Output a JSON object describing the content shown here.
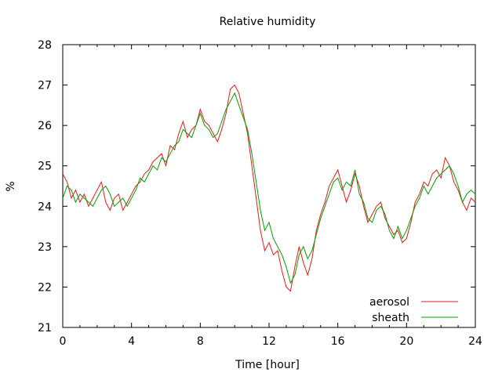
{
  "chart_data": {
    "type": "line",
    "title": "Relative humidity",
    "xlabel": "Time [hour]",
    "ylabel": "%",
    "xlim": [
      0,
      24
    ],
    "ylim": [
      21,
      28
    ],
    "xticks": [
      0,
      4,
      8,
      12,
      16,
      20,
      24
    ],
    "yticks": [
      21,
      22,
      23,
      24,
      25,
      26,
      27,
      28
    ],
    "grid": false,
    "legend_position": "bottom-right",
    "series": [
      {
        "name": "aerosol",
        "color": "#e41a1c",
        "x": [
          0,
          0.25,
          0.5,
          0.75,
          1,
          1.25,
          1.5,
          1.75,
          2,
          2.25,
          2.5,
          2.75,
          3,
          3.25,
          3.5,
          3.75,
          4,
          4.25,
          4.5,
          4.75,
          5,
          5.25,
          5.5,
          5.75,
          6,
          6.25,
          6.5,
          6.75,
          7,
          7.25,
          7.5,
          7.75,
          8,
          8.25,
          8.5,
          8.75,
          9,
          9.25,
          9.5,
          9.75,
          10,
          10.25,
          10.5,
          10.75,
          11,
          11.25,
          11.5,
          11.75,
          12,
          12.25,
          12.5,
          12.75,
          13,
          13.25,
          13.5,
          13.75,
          14,
          14.25,
          14.5,
          14.75,
          15,
          15.25,
          15.5,
          15.75,
          16,
          16.25,
          16.5,
          16.75,
          17,
          17.25,
          17.5,
          17.75,
          18,
          18.25,
          18.5,
          18.75,
          19,
          19.25,
          19.5,
          19.75,
          20,
          20.25,
          20.5,
          20.75,
          21,
          21.25,
          21.5,
          21.75,
          22,
          22.25,
          22.5,
          22.75,
          23,
          23.25,
          23.5,
          23.75,
          24
        ],
        "y": [
          24.8,
          24.6,
          24.2,
          24.4,
          24.1,
          24.3,
          24.0,
          24.2,
          24.4,
          24.6,
          24.1,
          23.9,
          24.2,
          24.3,
          23.9,
          24.1,
          24.3,
          24.5,
          24.6,
          24.8,
          24.9,
          25.1,
          25.2,
          25.3,
          25.0,
          25.5,
          25.4,
          25.8,
          26.1,
          25.7,
          25.9,
          26.0,
          26.4,
          26.1,
          26.0,
          25.8,
          25.6,
          25.9,
          26.3,
          26.9,
          27.0,
          26.8,
          26.3,
          25.8,
          25.0,
          24.2,
          23.4,
          22.9,
          23.1,
          22.8,
          22.9,
          22.4,
          22.0,
          21.9,
          22.5,
          23.0,
          22.6,
          22.3,
          22.7,
          23.4,
          23.8,
          24.1,
          24.5,
          24.7,
          24.9,
          24.5,
          24.1,
          24.4,
          24.8,
          24.5,
          24.0,
          23.6,
          23.8,
          24.0,
          24.1,
          23.7,
          23.5,
          23.3,
          23.4,
          23.1,
          23.2,
          23.6,
          24.1,
          24.3,
          24.6,
          24.5,
          24.8,
          24.9,
          24.7,
          25.2,
          25.0,
          24.6,
          24.4,
          24.1,
          23.9,
          24.2,
          24.1
        ]
      },
      {
        "name": "sheath",
        "color": "#00a000",
        "x": [
          0,
          0.25,
          0.5,
          0.75,
          1,
          1.25,
          1.5,
          1.75,
          2,
          2.25,
          2.5,
          2.75,
          3,
          3.25,
          3.5,
          3.75,
          4,
          4.25,
          4.5,
          4.75,
          5,
          5.25,
          5.5,
          5.75,
          6,
          6.25,
          6.5,
          6.75,
          7,
          7.25,
          7.5,
          7.75,
          8,
          8.25,
          8.5,
          8.75,
          9,
          9.25,
          9.5,
          9.75,
          10,
          10.25,
          10.5,
          10.75,
          11,
          11.25,
          11.5,
          11.75,
          12,
          12.25,
          12.5,
          12.75,
          13,
          13.25,
          13.5,
          13.75,
          14,
          14.25,
          14.5,
          14.75,
          15,
          15.25,
          15.5,
          15.75,
          16,
          16.25,
          16.5,
          16.75,
          17,
          17.25,
          17.5,
          17.75,
          18,
          18.25,
          18.5,
          18.75,
          19,
          19.25,
          19.5,
          19.75,
          20,
          20.25,
          20.5,
          20.75,
          21,
          21.25,
          21.5,
          21.75,
          22,
          22.25,
          22.5,
          22.75,
          23,
          23.25,
          23.5,
          23.75,
          24
        ],
        "y": [
          24.2,
          24.5,
          24.4,
          24.1,
          24.3,
          24.2,
          24.1,
          24.0,
          24.2,
          24.4,
          24.5,
          24.3,
          24.0,
          24.1,
          24.2,
          24.0,
          24.2,
          24.4,
          24.7,
          24.6,
          24.8,
          25.0,
          24.9,
          25.2,
          25.1,
          25.3,
          25.5,
          25.6,
          25.9,
          25.8,
          25.7,
          26.0,
          26.3,
          26.0,
          25.9,
          25.7,
          25.8,
          26.1,
          26.4,
          26.6,
          26.8,
          26.5,
          26.2,
          25.9,
          25.3,
          24.6,
          23.9,
          23.4,
          23.6,
          23.2,
          23.0,
          22.8,
          22.5,
          22.1,
          22.3,
          22.8,
          23.0,
          22.7,
          22.9,
          23.3,
          23.7,
          24.0,
          24.3,
          24.6,
          24.7,
          24.4,
          24.6,
          24.5,
          24.9,
          24.3,
          24.1,
          23.7,
          23.6,
          23.9,
          24.0,
          23.8,
          23.4,
          23.2,
          23.5,
          23.2,
          23.4,
          23.7,
          24.0,
          24.2,
          24.5,
          24.3,
          24.5,
          24.7,
          24.8,
          24.9,
          25.0,
          24.8,
          24.5,
          24.1,
          24.3,
          24.4,
          24.3
        ]
      }
    ]
  }
}
